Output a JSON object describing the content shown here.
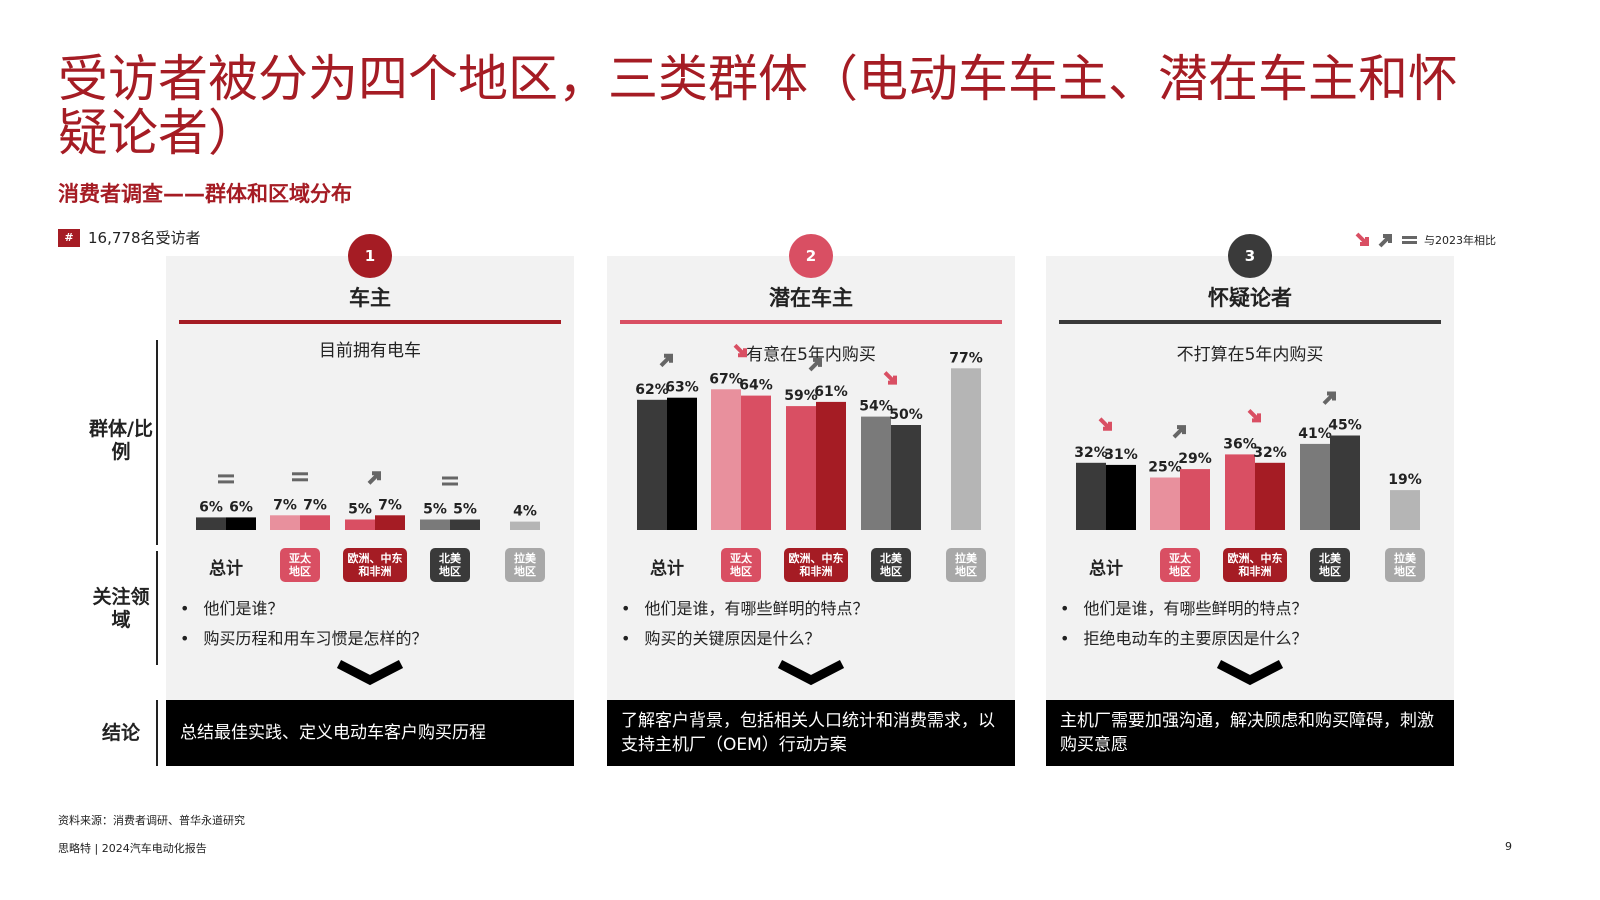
{
  "title": "受访者被分为四个地区，三类群体（电动车车主、潜在车主和怀疑论者）",
  "subtitle": "消费者调查——群体和区域分布",
  "respondents": {
    "icon": "#",
    "text": "16,778名受访者"
  },
  "legend": {
    "label": "与2023年相比",
    "icons": [
      "arrow-down-icon",
      "arrow-up-icon",
      "equal-icon"
    ]
  },
  "row_labels": {
    "group": "群体/比例",
    "focus": "关注领域",
    "conclusion": "结论"
  },
  "colors": {
    "brand": "#a51c24",
    "pink": "#d94f63",
    "dark": "#3a3a3a"
  },
  "regions": [
    {
      "label": "总计",
      "color": ""
    },
    {
      "label": "亚太地区",
      "color": "#d94f63"
    },
    {
      "label": "欧洲、中东和非洲",
      "color": "#a51c24"
    },
    {
      "label": "北美地区",
      "color": "#3a3a3a"
    },
    {
      "label": "拉美地区",
      "color": "#a8a8a8"
    }
  ],
  "panels": [
    {
      "number": "1",
      "title": "车主",
      "description": "目前拥有电车",
      "bullets": [
        "他们是谁？",
        "购买历程和用车习惯是怎样的？"
      ],
      "conclusion": "总结最佳实践、定义电动车客户购买历程"
    },
    {
      "number": "2",
      "title": "潜在车主",
      "description": "有意在5年内购买",
      "bullets": [
        "他们是谁，有哪些鲜明的特点？",
        "购买的关键原因是什么？"
      ],
      "conclusion": "了解客户背景，包括相关人口统计和消费需求，以支持主机厂（OEM）行动方案"
    },
    {
      "number": "3",
      "title": "怀疑论者",
      "description": "不打算在5年内购买",
      "bullets": [
        "他们是谁，有哪些鲜明的特点？",
        "拒绝电动车的主要原因是什么？"
      ],
      "conclusion": "主机厂需要加强沟通，解决顾虑和购买障碍，刺激购买意愿"
    }
  ],
  "chart_data": [
    {
      "type": "bar",
      "group": "车主",
      "categories": [
        "总计",
        "亚太地区",
        "欧洲、中东和非洲",
        "北美地区",
        "拉美地区"
      ],
      "series": [
        {
          "values": [
            6,
            7,
            5,
            5,
            null
          ]
        },
        {
          "values": [
            6,
            7,
            7,
            5,
            4
          ]
        }
      ],
      "labels": [
        [
          "6%",
          "7%",
          "5%",
          "5%",
          ""
        ],
        [
          "6%",
          "7%",
          "7%",
          "5%",
          "4%"
        ]
      ],
      "trend": [
        "equal",
        "equal",
        "up",
        "equal",
        ""
      ],
      "ylim": [
        0,
        100
      ]
    },
    {
      "type": "bar",
      "group": "潜在车主",
      "categories": [
        "总计",
        "亚太地区",
        "欧洲、中东和非洲",
        "北美地区",
        "拉美地区"
      ],
      "series": [
        {
          "values": [
            62,
            67,
            59,
            54,
            null
          ]
        },
        {
          "values": [
            63,
            64,
            61,
            50,
            77
          ]
        }
      ],
      "labels": [
        [
          "62%",
          "67%",
          "59%",
          "54%",
          ""
        ],
        [
          "63%",
          "64%",
          "61%",
          "50%",
          "77%"
        ]
      ],
      "trend": [
        "up",
        "down",
        "up",
        "down",
        ""
      ],
      "ylim": [
        0,
        100
      ]
    },
    {
      "type": "bar",
      "group": "怀疑论者",
      "categories": [
        "总计",
        "亚太地区",
        "欧洲、中东和非洲",
        "北美地区",
        "拉美地区"
      ],
      "series": [
        {
          "values": [
            32,
            25,
            36,
            41,
            null
          ]
        },
        {
          "values": [
            31,
            29,
            32,
            45,
            19
          ]
        }
      ],
      "labels": [
        [
          "32%",
          "25%",
          "36%",
          "41%",
          ""
        ],
        [
          "31%",
          "29%",
          "32%",
          "45%",
          "19%"
        ]
      ],
      "trend": [
        "down",
        "up",
        "down",
        "up",
        ""
      ],
      "ylim": [
        0,
        100
      ]
    }
  ],
  "source": "资料来源：消费者调研、普华永道研究",
  "footer": "思略特 | 2024汽车电动化报告",
  "page_number": "9"
}
